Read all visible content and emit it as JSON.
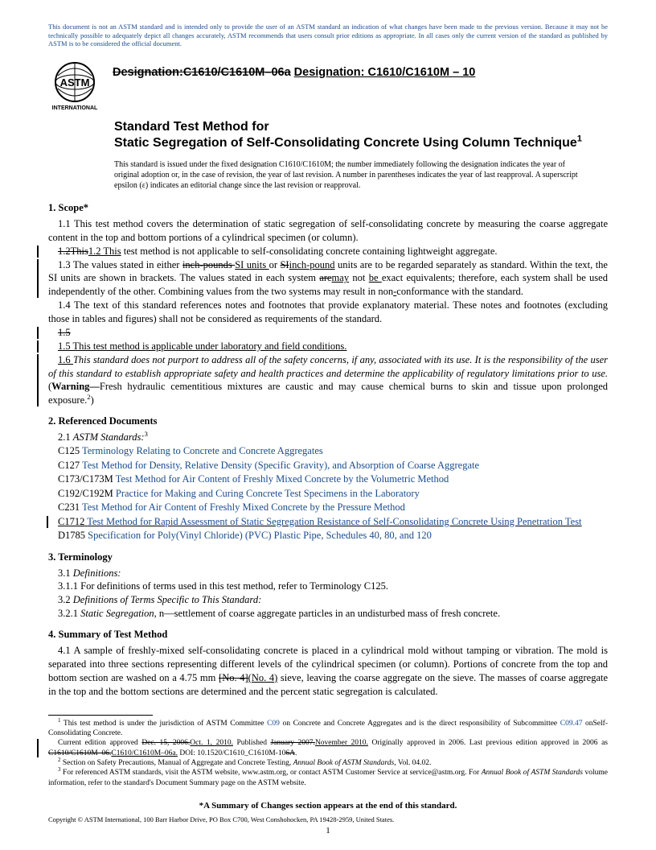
{
  "disclaimer": "This document is not an ASTM standard and is intended only to provide the user of an ASTM standard an indication of what changes have been made to the previous version. Because it may not be technically possible to adequately depict all changes accurately, ASTM recommends that users consult prior editions as appropriate. In all cases only the current version of the standard as published by ASTM is to be considered the official document.",
  "logo_text_top": "ASTM",
  "logo_text_bottom": "INTERNATIONAL",
  "designation_prefix": "Designation:",
  "designation_old": "C1610/C1610M–06a",
  "designation_new_prefix": "Designation: ",
  "designation_new": "C1610/C1610M – 10",
  "title_line1": "Standard Test Method for",
  "title_line2": "Static Segregation of Self-Consolidating Concrete Using Column Technique",
  "title_sup": "1",
  "issue_note": "This standard is issued under the fixed designation C1610/C1610M; the number immediately following the designation indicates the year of original adoption or, in the case of revision, the year of last revision. A number in parentheses indicates the year of last reapproval. A superscript epsilon (ε) indicates an editorial change since the last revision or reapproval.",
  "sec1_head": "1. Scope*",
  "sec1_1": "1.1 This test method covers the determination of static segregation of self-consolidating concrete by measuring the coarse aggregate content in the top and bottom portions of a cylindrical specimen (or column).",
  "sec1_2_old": "1.2This",
  "sec1_2_new": "1.2 This",
  "sec1_2_rest": " test method is not applicable to self-consolidating concrete containing lightweight aggregate.",
  "sec1_3_a": "1.3 The values stated in either ",
  "sec1_3_strike1": "inch-pounds ",
  "sec1_3_u1": "SI units ",
  "sec1_3_b": "or ",
  "sec1_3_strike2": "SI",
  "sec1_3_u2": "inch-pound",
  "sec1_3_c": " units are to be regarded separately as standard. Within the text, the SI units are shown in brackets. The values stated in each system ",
  "sec1_3_strike3": "are",
  "sec1_3_u3": "may",
  "sec1_3_d": " not ",
  "sec1_3_u4": "be ",
  "sec1_3_e": "exact equivalents; therefore, each system shall be used independently of the other. Combining values from the two systems may result in non",
  "sec1_3_u5": "-",
  "sec1_3_f": "conformance with the standard.",
  "sec1_4": "1.4 The text of this standard references notes and footnotes that provide explanatory material. These notes and footnotes (excluding those in tables and figures) shall not be considered as requirements of the standard.",
  "sec1_5_old": "1.5",
  "sec1_5_new": "1.5 This test method is applicable under laboratory and field conditions.",
  "sec1_6_u": "1.6 ",
  "sec1_6_ital": "This standard does not purport to address all of the safety concerns, if any, associated with its use. It is the responsibility of the user of this standard to establish appropriate safety and health practices and determine the applicability of regulatory limitations prior to use.",
  "sec1_6_warn_label": "Warning—",
  "sec1_6_warn": "Fresh hydraulic cementitious mixtures are caustic and may cause chemical burns to skin and tissue upon prolonged exposure.",
  "sec1_6_sup": "2",
  "sec2_head": "2. Referenced Documents",
  "sec2_1_label": "2.1 ",
  "sec2_1_ital": "ASTM Standards:",
  "sec2_1_sup": "3",
  "refs": [
    {
      "code": "C125",
      "title": "Terminology Relating to Concrete and Concrete Aggregates"
    },
    {
      "code": "C127",
      "title": "Test Method for Density, Relative Density (Specific Gravity), and Absorption of Coarse Aggregate"
    },
    {
      "code": "C173/C173M",
      "title": "Test Method for Air Content of Freshly Mixed Concrete by the Volumetric Method"
    },
    {
      "code": "C192/C192M",
      "title": "Practice for Making and Curing Concrete Test Specimens in the Laboratory"
    },
    {
      "code": "C231",
      "title": "Test Method for Air Content of Freshly Mixed Concrete by the Pressure Method"
    }
  ],
  "ref_c1712_code": "C1712",
  "ref_c1712_title": "Test Method for Rapid Assessment of Static Segregation Resistance of Self-Consolidating Concrete Using Penetration Test",
  "ref_d1785_code": "D1785",
  "ref_d1785_title": "Specification for Poly(Vinyl Chloride) (PVC) Plastic Pipe, Schedules 40, 80, and 120",
  "sec3_head": "3. Terminology",
  "sec3_1_label": "3.1 ",
  "sec3_1_ital": "Definitions:",
  "sec3_1_1": "3.1.1 For definitions of terms used in this test method, refer to Terminology C125.",
  "sec3_2_label": "3.2 ",
  "sec3_2_ital": "Definitions of Terms Specific to This Standard:",
  "sec3_2_1_label": "3.2.1 ",
  "sec3_2_1_term": "Static Segregation",
  "sec3_2_1_rest": ", n—settlement of coarse aggregate particles in an undisturbed mass of fresh concrete.",
  "sec4_head": "4. Summary of Test Method",
  "sec4_1_a": "4.1 A sample of freshly-mixed self-consolidating concrete is placed in a cylindrical mold without tamping or vibration. The mold is separated into three sections representing different levels of the cylindrical specimen (or column). Portions of concrete from the top and bottom section are washed on a 4.75 mm ",
  "sec4_1_strike": "[No. 4]",
  "sec4_1_u": "(No. 4)",
  "sec4_1_b": " sieve, leaving the coarse aggregate on the sieve. The masses of coarse aggregate in the top and the bottom sections are determined and the percent static segregation is calculated.",
  "fn1_a": " This test method is under the jurisdiction of ASTM Committee ",
  "fn1_link1": "C09",
  "fn1_b": " on Concrete and Concrete Aggregates and is the direct responsibility of Subcommittee ",
  "fn1_link2": "C09.47",
  "fn1_c": " onSelf-Consolidating Concrete.",
  "fn1_d": "Current edition approved ",
  "fn1_strike1": "Dec. 15, 2006.",
  "fn1_u1": "Oct. 1, 2010.",
  "fn1_e": " Published ",
  "fn1_strike2": "January 2007.",
  "fn1_u2": "November 2010.",
  "fn1_f": " Originally approved in 2006. Last previous edition approved in 2006 as ",
  "fn1_strike3": "C1610/C1610M–06.",
  "fn1_u3": "C1610/C1610M–06a.",
  "fn1_g": " DOI: 10.1520/C1610_C1610M-10",
  "fn1_strike4": "6A",
  "fn1_h": ".",
  "fn2": " Section on Safety Precautions, Manual of Aggregate and Concrete Testing, Annual Book of ASTM Standards, Vol. 04.02.",
  "fn2_ital": "Annual Book of ASTM Standards",
  "fn3_a": " For referenced ASTM standards, visit the ASTM website, www.astm.org, or contact ASTM Customer Service at service@astm.org. For ",
  "fn3_ital": "Annual Book of ASTM Standards",
  "fn3_b": " volume information, refer to the standard's Document Summary page on the ASTM website.",
  "summary_line": "*A Summary of Changes section appears at the end of this standard.",
  "copyright": "Copyright © ASTM International, 100 Barr Harbor Drive, PO Box C700, West Conshohocken, PA 19428-2959, United States.",
  "page_num": "1"
}
